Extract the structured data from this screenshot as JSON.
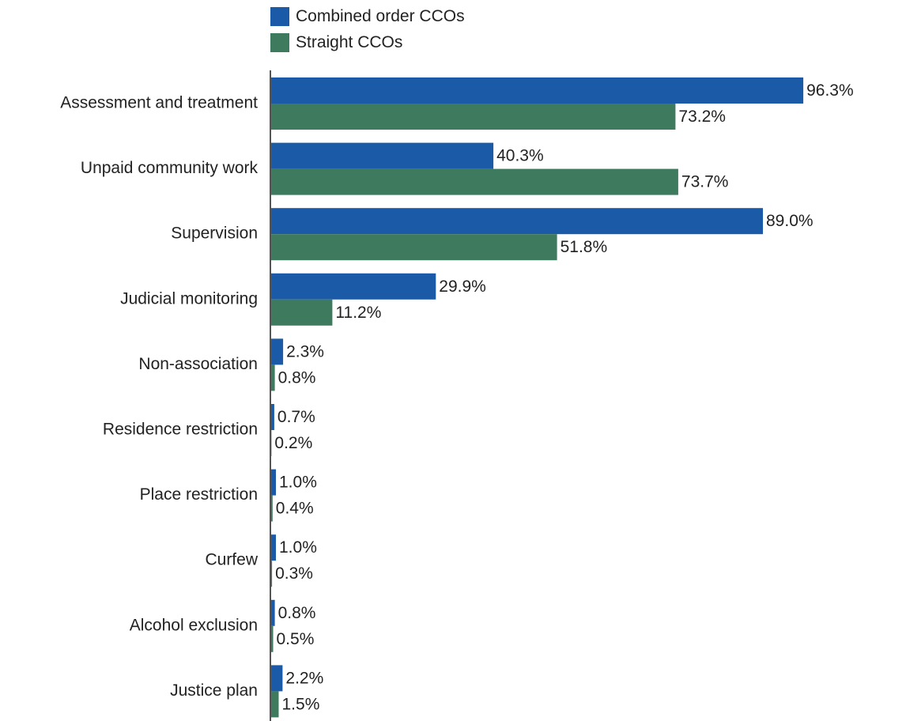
{
  "chart_data": {
    "type": "bar",
    "orientation": "horizontal",
    "categories": [
      "Assessment and treatment",
      "Unpaid community work",
      "Supervision",
      "Judicial monitoring",
      "Non-association",
      "Residence restriction",
      "Place restriction",
      "Curfew",
      "Alcohol exclusion",
      "Justice plan"
    ],
    "series": [
      {
        "name": "Combined order CCOs",
        "color": "#1a5aa6",
        "values": [
          96.3,
          40.3,
          89.0,
          29.9,
          2.3,
          0.7,
          1.0,
          1.0,
          0.8,
          2.2
        ],
        "labels": [
          "96.3%",
          "40.3%",
          "89.0%",
          "29.9%",
          "2.3%",
          "0.7%",
          "1.0%",
          "1.0%",
          "0.8%",
          "2.2%"
        ]
      },
      {
        "name": "Straight CCOs",
        "color": "#3e7a5e",
        "values": [
          73.2,
          73.7,
          51.8,
          11.2,
          0.8,
          0.2,
          0.4,
          0.3,
          0.5,
          1.5
        ],
        "labels": [
          "73.2%",
          "73.7%",
          "51.8%",
          "11.2%",
          "0.8%",
          "0.2%",
          "0.4%",
          "0.3%",
          "0.5%",
          "1.5%"
        ]
      }
    ],
    "title": "",
    "xlabel": "",
    "ylabel": "",
    "xlim": [
      0,
      100
    ],
    "grid": false,
    "legend_position": "top"
  }
}
